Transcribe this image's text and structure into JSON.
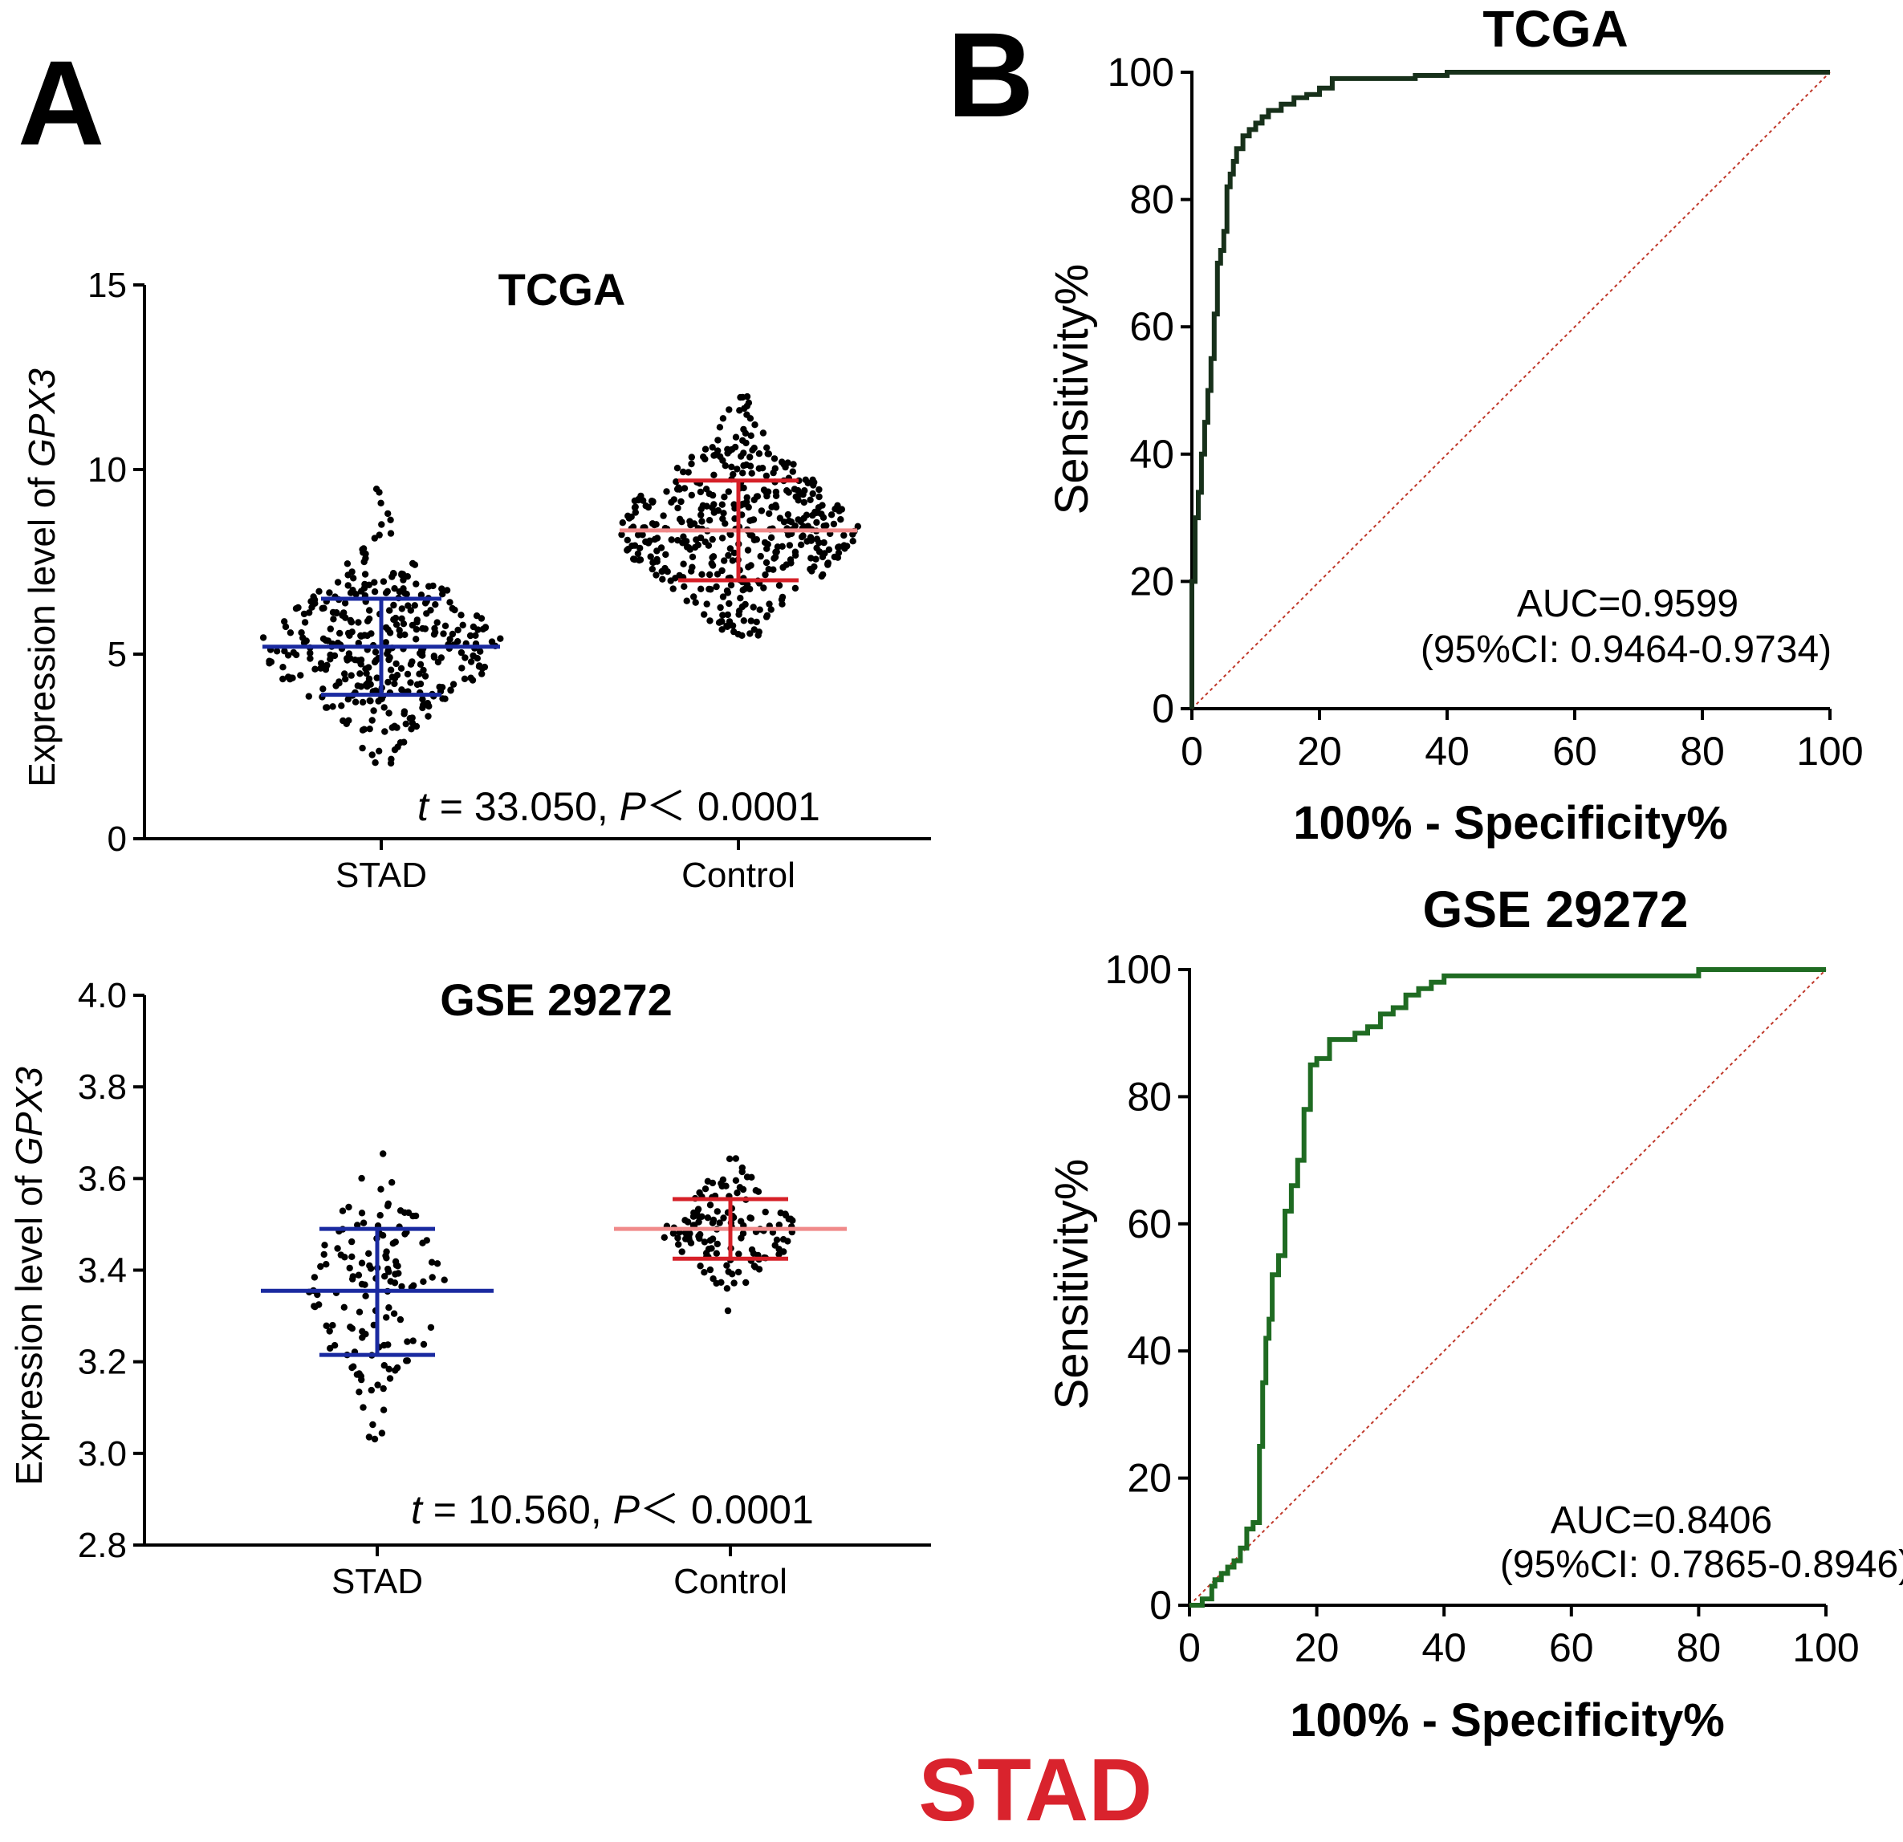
{
  "figure": {
    "panel_a_label": "A",
    "panel_b_label": "B",
    "bottom_label": "STAD",
    "bottom_label_color": "#d9232d"
  },
  "colors": {
    "stad_bar": "#1a2aa0",
    "control_bar": "#d62028",
    "control_bar_light": "#f08a8a",
    "roc_tcga": "#17301a",
    "roc_gse": "#1f6b22",
    "reference_line": "#c0392b",
    "dots": "#000000"
  },
  "chart_data": [
    {
      "id": "scatter_tcga",
      "type": "scatter",
      "title": "TCGA",
      "ylabel_prefix": "Expression level of ",
      "ylabel_gene": "GPX3",
      "xlabel": "",
      "categories": [
        "STAD",
        "Control"
      ],
      "ylim": [
        0,
        15
      ],
      "yticks": [
        0,
        5,
        10,
        15
      ],
      "ytick_labels": [
        "0",
        "5",
        "10",
        "15"
      ],
      "series": [
        {
          "name": "STAD",
          "n": 375,
          "mean": 5.2,
          "sd_low": 3.9,
          "sd_high": 6.5,
          "min": 1.8,
          "max": 9.5
        },
        {
          "name": "Control",
          "n": 450,
          "mean": 8.35,
          "sd_low": 7.0,
          "sd_high": 9.7,
          "min": 5.5,
          "max": 12.1
        }
      ],
      "stat_t_label": "t",
      "stat_t_value": " = 33.050, ",
      "stat_p_label": "P",
      "stat_p_value": "＜ 0.0001",
      "grid": false
    },
    {
      "id": "scatter_gse",
      "type": "scatter",
      "title": "GSE 29272",
      "ylabel_prefix": "Expression level of ",
      "ylabel_gene": "GPX3",
      "xlabel": "",
      "categories": [
        "STAD",
        "Control"
      ],
      "ylim": [
        2.8,
        4.0
      ],
      "yticks": [
        2.8,
        3.0,
        3.2,
        3.4,
        3.6,
        3.8,
        4.0
      ],
      "ytick_labels": [
        "2.8",
        "3.0",
        "3.2",
        "3.4",
        "3.6",
        "3.8",
        "4.0"
      ],
      "series": [
        {
          "name": "STAD",
          "n": 134,
          "mean": 3.355,
          "sd_low": 3.215,
          "sd_high": 3.49,
          "min": 3.02,
          "max": 3.78
        },
        {
          "name": "Control",
          "n": 134,
          "mean": 3.49,
          "sd_low": 3.425,
          "sd_high": 3.555,
          "min": 3.25,
          "max": 3.68
        }
      ],
      "stat_t_label": "t",
      "stat_t_value": " = 10.560, ",
      "stat_p_label": "P",
      "stat_p_value": "＜ 0.0001",
      "grid": false
    },
    {
      "id": "roc_tcga",
      "type": "line",
      "title": "TCGA",
      "xlabel": "100% - Specificity%",
      "ylabel": "Sensitivity%",
      "xlim": [
        0,
        100
      ],
      "ylim": [
        0,
        100
      ],
      "xticks": [
        0,
        20,
        40,
        60,
        80,
        100
      ],
      "yticks": [
        0,
        20,
        40,
        60,
        80,
        100
      ],
      "tick_labels": [
        "0",
        "20",
        "40",
        "60",
        "80",
        "100"
      ],
      "auc_line": "AUC=0.9599",
      "ci_line": "(95%CI: 0.9464-0.9734)",
      "series": [
        {
          "x": [
            0,
            0,
            0.5,
            1,
            1.5,
            2,
            2.5,
            3,
            3.5,
            4,
            4.5,
            5,
            5.5,
            6,
            6.5,
            7,
            8,
            9,
            10,
            11,
            12,
            14,
            16,
            18,
            20,
            22,
            25,
            30,
            35,
            40,
            50,
            60,
            70,
            80,
            90,
            100
          ],
          "y": [
            0,
            20,
            30,
            34,
            40,
            45,
            50,
            55,
            62,
            70,
            72,
            75,
            82,
            84,
            86,
            88,
            90,
            91,
            92,
            93,
            94,
            95,
            96,
            96.5,
            97.5,
            99,
            99,
            99,
            99.5,
            100,
            100,
            100,
            100,
            100,
            100,
            100
          ]
        }
      ],
      "reference_line": true,
      "grid": false
    },
    {
      "id": "roc_gse",
      "type": "line",
      "title": "GSE 29272",
      "xlabel": "100% - Specificity%",
      "ylabel": "Sensitivity%",
      "xlim": [
        0,
        100
      ],
      "ylim": [
        0,
        100
      ],
      "xticks": [
        0,
        20,
        40,
        60,
        80,
        100
      ],
      "yticks": [
        0,
        20,
        40,
        60,
        80,
        100
      ],
      "tick_labels": [
        "0",
        "20",
        "40",
        "60",
        "80",
        "100"
      ],
      "auc_line": "AUC=0.8406",
      "ci_line": "(95%CI: 0.7865-0.8946)",
      "series": [
        {
          "x": [
            0,
            1,
            2,
            3,
            3.5,
            4,
            5,
            6,
            7,
            8,
            9,
            10,
            11,
            11.5,
            12,
            12.5,
            13,
            14,
            15,
            16,
            17,
            18,
            19,
            20,
            22,
            24,
            26,
            28,
            30,
            32,
            34,
            36,
            38,
            40,
            50,
            60,
            70,
            80,
            90,
            100
          ],
          "y": [
            0,
            0,
            1,
            1,
            3,
            4,
            5,
            6,
            7,
            9,
            12,
            13,
            25,
            35,
            42,
            45,
            52,
            55,
            62,
            66,
            70,
            78,
            85,
            86,
            89,
            89,
            90,
            91,
            93,
            94,
            96,
            97,
            98,
            99,
            99,
            99,
            99,
            100,
            100,
            100
          ]
        }
      ],
      "reference_line": true,
      "grid": false
    }
  ]
}
